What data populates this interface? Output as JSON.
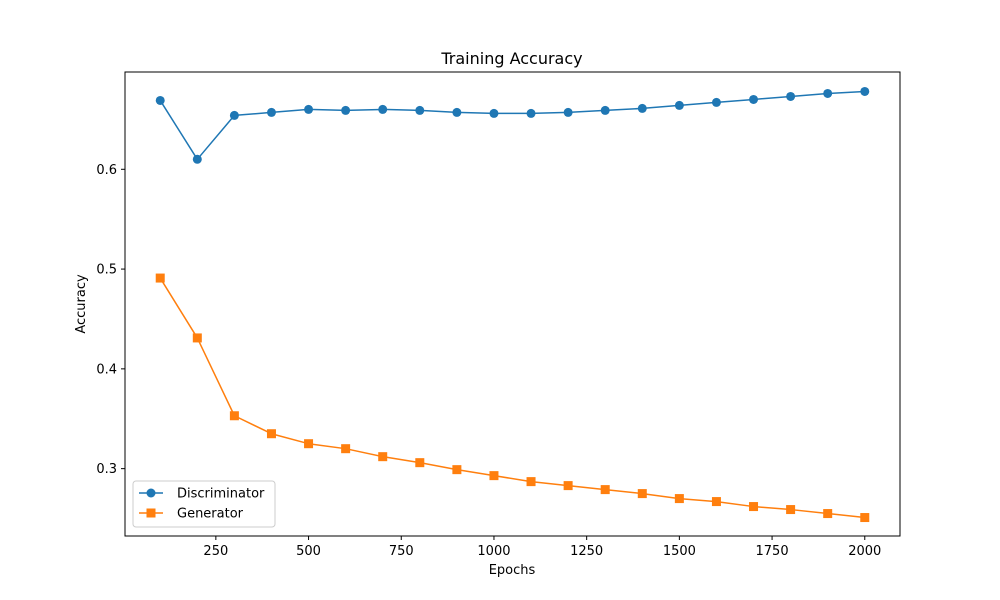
{
  "chart_data": {
    "type": "line",
    "title": "Training Accuracy",
    "xlabel": "Epochs",
    "ylabel": "Accuracy",
    "xlim": [
      5,
      2095
    ],
    "ylim": [
      0.2325,
      0.6975
    ],
    "xticks": [
      250,
      500,
      750,
      1000,
      1250,
      1500,
      1750,
      2000
    ],
    "yticks": [
      0.3,
      0.4,
      0.5,
      0.6
    ],
    "xtick_labels": [
      "250",
      "500",
      "750",
      "1000",
      "1250",
      "1500",
      "1750",
      "2000"
    ],
    "ytick_labels": [
      "0.3",
      "0.4",
      "0.5",
      "0.6"
    ],
    "grid": false,
    "legend_position": "lower-left",
    "x": [
      100,
      200,
      300,
      400,
      500,
      600,
      700,
      800,
      900,
      1000,
      1100,
      1200,
      1300,
      1400,
      1500,
      1600,
      1700,
      1800,
      1900,
      2000
    ],
    "series": [
      {
        "name": "Discriminator",
        "marker": "circle",
        "color": "#1f77b4",
        "values": [
          0.669,
          0.61,
          0.654,
          0.657,
          0.66,
          0.659,
          0.66,
          0.659,
          0.657,
          0.656,
          0.656,
          0.657,
          0.659,
          0.661,
          0.664,
          0.667,
          0.67,
          0.673,
          0.676,
          0.678
        ]
      },
      {
        "name": "Generator",
        "marker": "square",
        "color": "#ff7f0e",
        "values": [
          0.491,
          0.431,
          0.353,
          0.335,
          0.325,
          0.32,
          0.312,
          0.306,
          0.299,
          0.293,
          0.287,
          0.283,
          0.279,
          0.275,
          0.27,
          0.267,
          0.262,
          0.259,
          0.255,
          0.251
        ]
      }
    ]
  }
}
